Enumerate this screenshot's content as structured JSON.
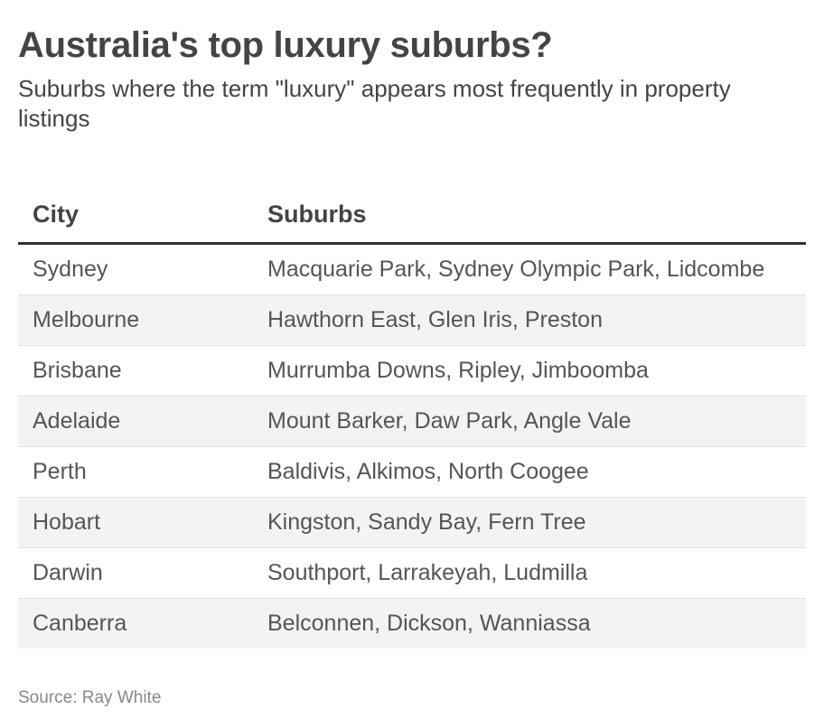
{
  "title": "Australia's top luxury suburbs?",
  "subtitle": "Suburbs where the term \"luxury\" appears most frequently in property listings",
  "source": "Source: Ray White",
  "chart_data": {
    "type": "table",
    "title": "Australia's top luxury suburbs?",
    "subtitle": "Suburbs where the term \"luxury\" appears most frequently in property listings",
    "columns": [
      "City",
      "Suburbs"
    ],
    "rows": [
      [
        "Sydney",
        "Macquarie Park, Sydney Olympic Park, Lidcombe"
      ],
      [
        "Melbourne",
        "Hawthorn East, Glen Iris, Preston"
      ],
      [
        "Brisbane",
        "Murrumba Downs, Ripley, Jimboomba"
      ],
      [
        "Adelaide",
        "Mount Barker, Daw Park, Angle Vale"
      ],
      [
        "Perth",
        "Baldivis, Alkimos, North Coogee"
      ],
      [
        "Hobart",
        "Kingston, Sandy Bay, Fern Tree"
      ],
      [
        "Darwin",
        "Southport, Larrakeyah, Ludmilla"
      ],
      [
        "Canberra",
        "Belconnen, Dickson, Wanniassa"
      ]
    ],
    "source": "Source: Ray White"
  }
}
